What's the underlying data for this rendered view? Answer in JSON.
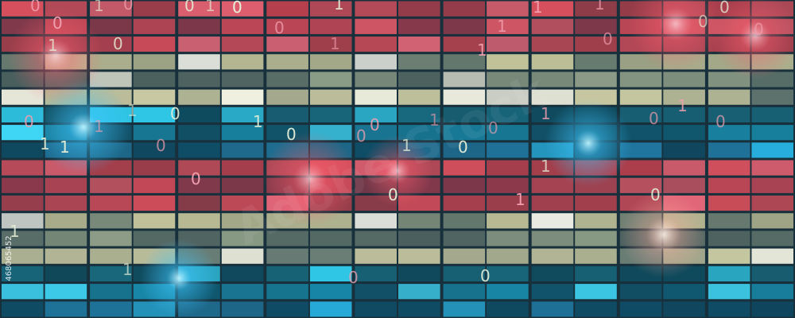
{
  "digits": [
    "0",
    "1",
    "0",
    "0",
    "1",
    "0",
    "1",
    "1",
    "1",
    "0",
    "0",
    "1",
    "0",
    "0",
    "1",
    "0",
    "0",
    "1",
    "1",
    "0",
    "0",
    "1",
    "1",
    "0",
    "1",
    "0",
    "0",
    "1",
    "0",
    "1",
    "0",
    "1",
    "0",
    "1",
    "1",
    "0",
    "0",
    "1",
    "0",
    "1",
    "0",
    "0",
    "1",
    "0",
    "1",
    "1",
    "0",
    "0"
  ],
  "stock_id": "468065452",
  "watermark": "Adobe Stock"
}
